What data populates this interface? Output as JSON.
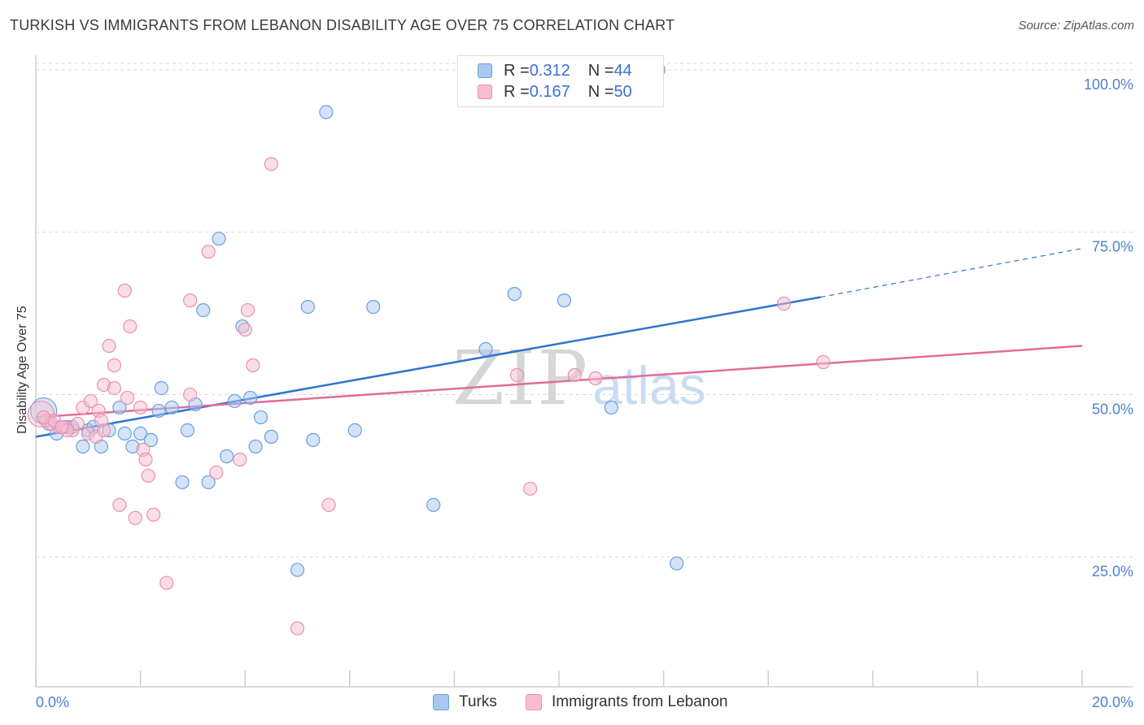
{
  "title": "TURKISH VS IMMIGRANTS FROM LEBANON DISABILITY AGE OVER 75 CORRELATION CHART",
  "source": "Source: ZipAtlas.com",
  "watermark": {
    "zip": "ZIP",
    "atlas": "atlas"
  },
  "colors": {
    "turks_fill": "#a9c8f0",
    "turks_stroke": "#6a9ee0",
    "turks_line": "#2f73d0",
    "lebanon_fill": "#f6bdd0",
    "lebanon_stroke": "#e890b0",
    "lebanon_line": "#e06c98",
    "grid": "#d9d9d9",
    "tick_text": "#4f7fcf"
  },
  "legend": {
    "turks": {
      "r_label": "R = ",
      "r_value": "0.312",
      "n_label": "N = ",
      "n_value": "44"
    },
    "lebanon": {
      "r_label": "R = ",
      "r_value": "0.167",
      "n_label": "N = ",
      "n_value": "50"
    }
  },
  "bottom_legend": {
    "turks": "Turks",
    "lebanon": "Immigrants from Lebanon"
  },
  "chart_data": {
    "type": "scatter",
    "title": "TURKISH VS IMMIGRANTS FROM LEBANON DISABILITY AGE OVER 75 CORRELATION CHART",
    "xlabel": "",
    "ylabel": "Disability Age Over 75",
    "xlim": [
      0,
      20
    ],
    "ylim": [
      5,
      103
    ],
    "x_ticks": [
      0,
      2,
      4,
      6,
      8,
      10,
      12,
      14,
      16,
      18,
      20
    ],
    "x_tick_labels": [
      {
        "value": 0,
        "label": "0.0%"
      },
      {
        "value": 20,
        "label": "20.0%"
      }
    ],
    "y_ticks": [
      {
        "value": 25,
        "label": "25.0%"
      },
      {
        "value": 50,
        "label": "50.0%"
      },
      {
        "value": 75,
        "label": "75.0%"
      },
      {
        "value": 100,
        "label": "100.0%"
      }
    ],
    "grid": true,
    "legend_position": "top-center",
    "series": [
      {
        "name": "Turks",
        "trend": {
          "x0": 0,
          "y0": 43.5,
          "x1": 15,
          "y1": 65,
          "dashed_to_x": 20,
          "dashed_to_y": 72.5
        },
        "points": [
          {
            "x": 0.15,
            "y": 47.5,
            "big": true
          },
          {
            "x": 0.25,
            "y": 45.5
          },
          {
            "x": 0.4,
            "y": 44.0
          },
          {
            "x": 0.6,
            "y": 45.0
          },
          {
            "x": 0.9,
            "y": 42.0
          },
          {
            "x": 1.0,
            "y": 44.5
          },
          {
            "x": 1.1,
            "y": 45.0
          },
          {
            "x": 1.25,
            "y": 42.0
          },
          {
            "x": 1.4,
            "y": 44.5
          },
          {
            "x": 1.6,
            "y": 48.0
          },
          {
            "x": 1.7,
            "y": 44.0
          },
          {
            "x": 1.85,
            "y": 42.0
          },
          {
            "x": 2.0,
            "y": 44.0
          },
          {
            "x": 2.2,
            "y": 43.0
          },
          {
            "x": 2.35,
            "y": 47.5
          },
          {
            "x": 2.4,
            "y": 51.0
          },
          {
            "x": 2.6,
            "y": 48.0
          },
          {
            "x": 2.8,
            "y": 36.5
          },
          {
            "x": 2.9,
            "y": 44.5
          },
          {
            "x": 3.05,
            "y": 48.5
          },
          {
            "x": 3.2,
            "y": 63.0
          },
          {
            "x": 3.3,
            "y": 36.5
          },
          {
            "x": 3.5,
            "y": 74.0
          },
          {
            "x": 3.65,
            "y": 40.5
          },
          {
            "x": 3.8,
            "y": 49.0
          },
          {
            "x": 3.95,
            "y": 60.5
          },
          {
            "x": 4.1,
            "y": 49.5
          },
          {
            "x": 4.2,
            "y": 42.0
          },
          {
            "x": 4.3,
            "y": 46.5
          },
          {
            "x": 4.5,
            "y": 43.5
          },
          {
            "x": 5.0,
            "y": 23.0
          },
          {
            "x": 5.2,
            "y": 63.5
          },
          {
            "x": 5.3,
            "y": 43.0
          },
          {
            "x": 5.55,
            "y": 93.5
          },
          {
            "x": 6.1,
            "y": 44.5
          },
          {
            "x": 6.45,
            "y": 63.5
          },
          {
            "x": 7.6,
            "y": 33.0
          },
          {
            "x": 8.6,
            "y": 57.0
          },
          {
            "x": 9.15,
            "y": 65.5
          },
          {
            "x": 10.1,
            "y": 64.5
          },
          {
            "x": 11.0,
            "y": 48.0
          },
          {
            "x": 11.9,
            "y": 100.0
          },
          {
            "x": 12.25,
            "y": 24.0
          },
          {
            "x": 0.7,
            "y": 45.0
          }
        ]
      },
      {
        "name": "Immigrants from Lebanon",
        "trend": {
          "x0": 0,
          "y0": 46.5,
          "x1": 20,
          "y1": 57.5
        },
        "points": [
          {
            "x": 0.1,
            "y": 47.0,
            "big": true
          },
          {
            "x": 0.2,
            "y": 46.0
          },
          {
            "x": 0.3,
            "y": 45.5
          },
          {
            "x": 0.45,
            "y": 45.0
          },
          {
            "x": 0.55,
            "y": 45.0
          },
          {
            "x": 0.7,
            "y": 44.5
          },
          {
            "x": 0.8,
            "y": 45.5
          },
          {
            "x": 0.9,
            "y": 48.0
          },
          {
            "x": 1.0,
            "y": 44.0
          },
          {
            "x": 1.05,
            "y": 49.0
          },
          {
            "x": 1.15,
            "y": 43.5
          },
          {
            "x": 1.2,
            "y": 47.5
          },
          {
            "x": 1.3,
            "y": 44.5
          },
          {
            "x": 1.3,
            "y": 51.5
          },
          {
            "x": 1.4,
            "y": 57.5
          },
          {
            "x": 1.5,
            "y": 51.0
          },
          {
            "x": 1.5,
            "y": 54.5
          },
          {
            "x": 1.6,
            "y": 33.0
          },
          {
            "x": 1.7,
            "y": 66.0
          },
          {
            "x": 1.75,
            "y": 49.5
          },
          {
            "x": 1.8,
            "y": 60.5
          },
          {
            "x": 1.9,
            "y": 31.0
          },
          {
            "x": 2.0,
            "y": 48.0
          },
          {
            "x": 2.05,
            "y": 41.5
          },
          {
            "x": 2.1,
            "y": 40.0
          },
          {
            "x": 2.15,
            "y": 37.5
          },
          {
            "x": 2.25,
            "y": 31.5
          },
          {
            "x": 2.5,
            "y": 21.0
          },
          {
            "x": 2.95,
            "y": 64.5
          },
          {
            "x": 2.95,
            "y": 50.0
          },
          {
            "x": 3.3,
            "y": 72.0
          },
          {
            "x": 3.45,
            "y": 38.0
          },
          {
            "x": 3.9,
            "y": 40.0
          },
          {
            "x": 4.0,
            "y": 60.0
          },
          {
            "x": 4.05,
            "y": 63.0
          },
          {
            "x": 4.15,
            "y": 54.5
          },
          {
            "x": 4.5,
            "y": 85.5
          },
          {
            "x": 5.0,
            "y": 14.0
          },
          {
            "x": 5.6,
            "y": 33.0
          },
          {
            "x": 9.2,
            "y": 53.0
          },
          {
            "x": 9.45,
            "y": 35.5
          },
          {
            "x": 10.3,
            "y": 53.0
          },
          {
            "x": 10.7,
            "y": 52.5
          },
          {
            "x": 14.3,
            "y": 64.0
          },
          {
            "x": 15.05,
            "y": 55.0
          },
          {
            "x": 0.35,
            "y": 46.0
          },
          {
            "x": 0.6,
            "y": 44.5
          },
          {
            "x": 1.25,
            "y": 46.0
          },
          {
            "x": 0.5,
            "y": 45.0
          },
          {
            "x": 0.15,
            "y": 46.5
          }
        ]
      }
    ]
  }
}
